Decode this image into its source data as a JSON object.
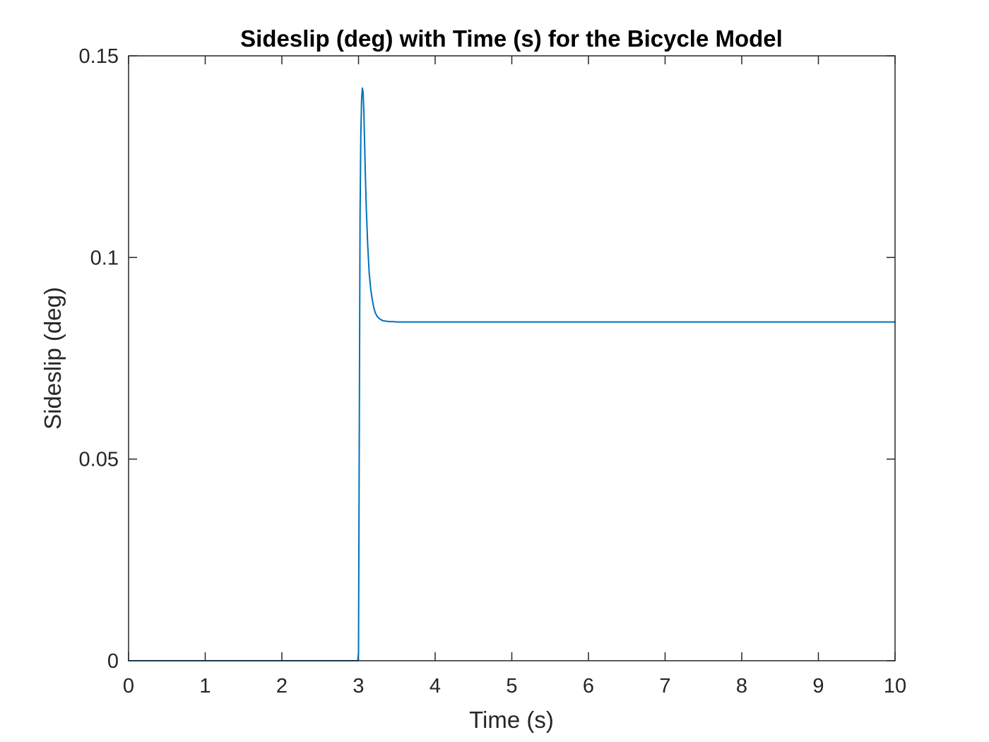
{
  "chart_data": {
    "type": "line",
    "title": "Sideslip (deg) with Time (s) for the Bicycle Model",
    "xlabel": "Time (s)",
    "ylabel": "Sideslip (deg)",
    "xlim": [
      0,
      10
    ],
    "ylim": [
      0,
      0.15
    ],
    "xticks": [
      0,
      1,
      2,
      3,
      4,
      5,
      6,
      7,
      8,
      9,
      10
    ],
    "xtick_labels": [
      "0",
      "1",
      "2",
      "3",
      "4",
      "5",
      "6",
      "7",
      "8",
      "9",
      "10"
    ],
    "yticks": [
      0,
      0.05,
      0.1,
      0.15
    ],
    "ytick_labels": [
      "0",
      "0.05",
      "0.1",
      "0.15"
    ],
    "grid": false,
    "legend": "none",
    "series_color": "#0072BD",
    "axis_color": "#262626",
    "series": [
      {
        "x": [
          0,
          2.99,
          3.0,
          3.02,
          3.03,
          3.04,
          3.05,
          3.06,
          3.07,
          3.08,
          3.09,
          3.1,
          3.12,
          3.14,
          3.16,
          3.18,
          3.2,
          3.22,
          3.25,
          3.28,
          3.32,
          3.36,
          3.4,
          3.45,
          3.5,
          3.6,
          3.7,
          4.0,
          5.0,
          6.0,
          7.0,
          8.0,
          9.0,
          10.0
        ],
        "y": [
          0,
          0,
          0.002,
          0.11,
          0.13,
          0.139,
          0.142,
          0.141,
          0.136,
          0.128,
          0.12,
          0.113,
          0.103,
          0.096,
          0.092,
          0.0895,
          0.0875,
          0.0862,
          0.0852,
          0.0847,
          0.0843,
          0.0842,
          0.0841,
          0.0841,
          0.084,
          0.084,
          0.084,
          0.084,
          0.084,
          0.084,
          0.084,
          0.084,
          0.084,
          0.084
        ]
      }
    ]
  }
}
